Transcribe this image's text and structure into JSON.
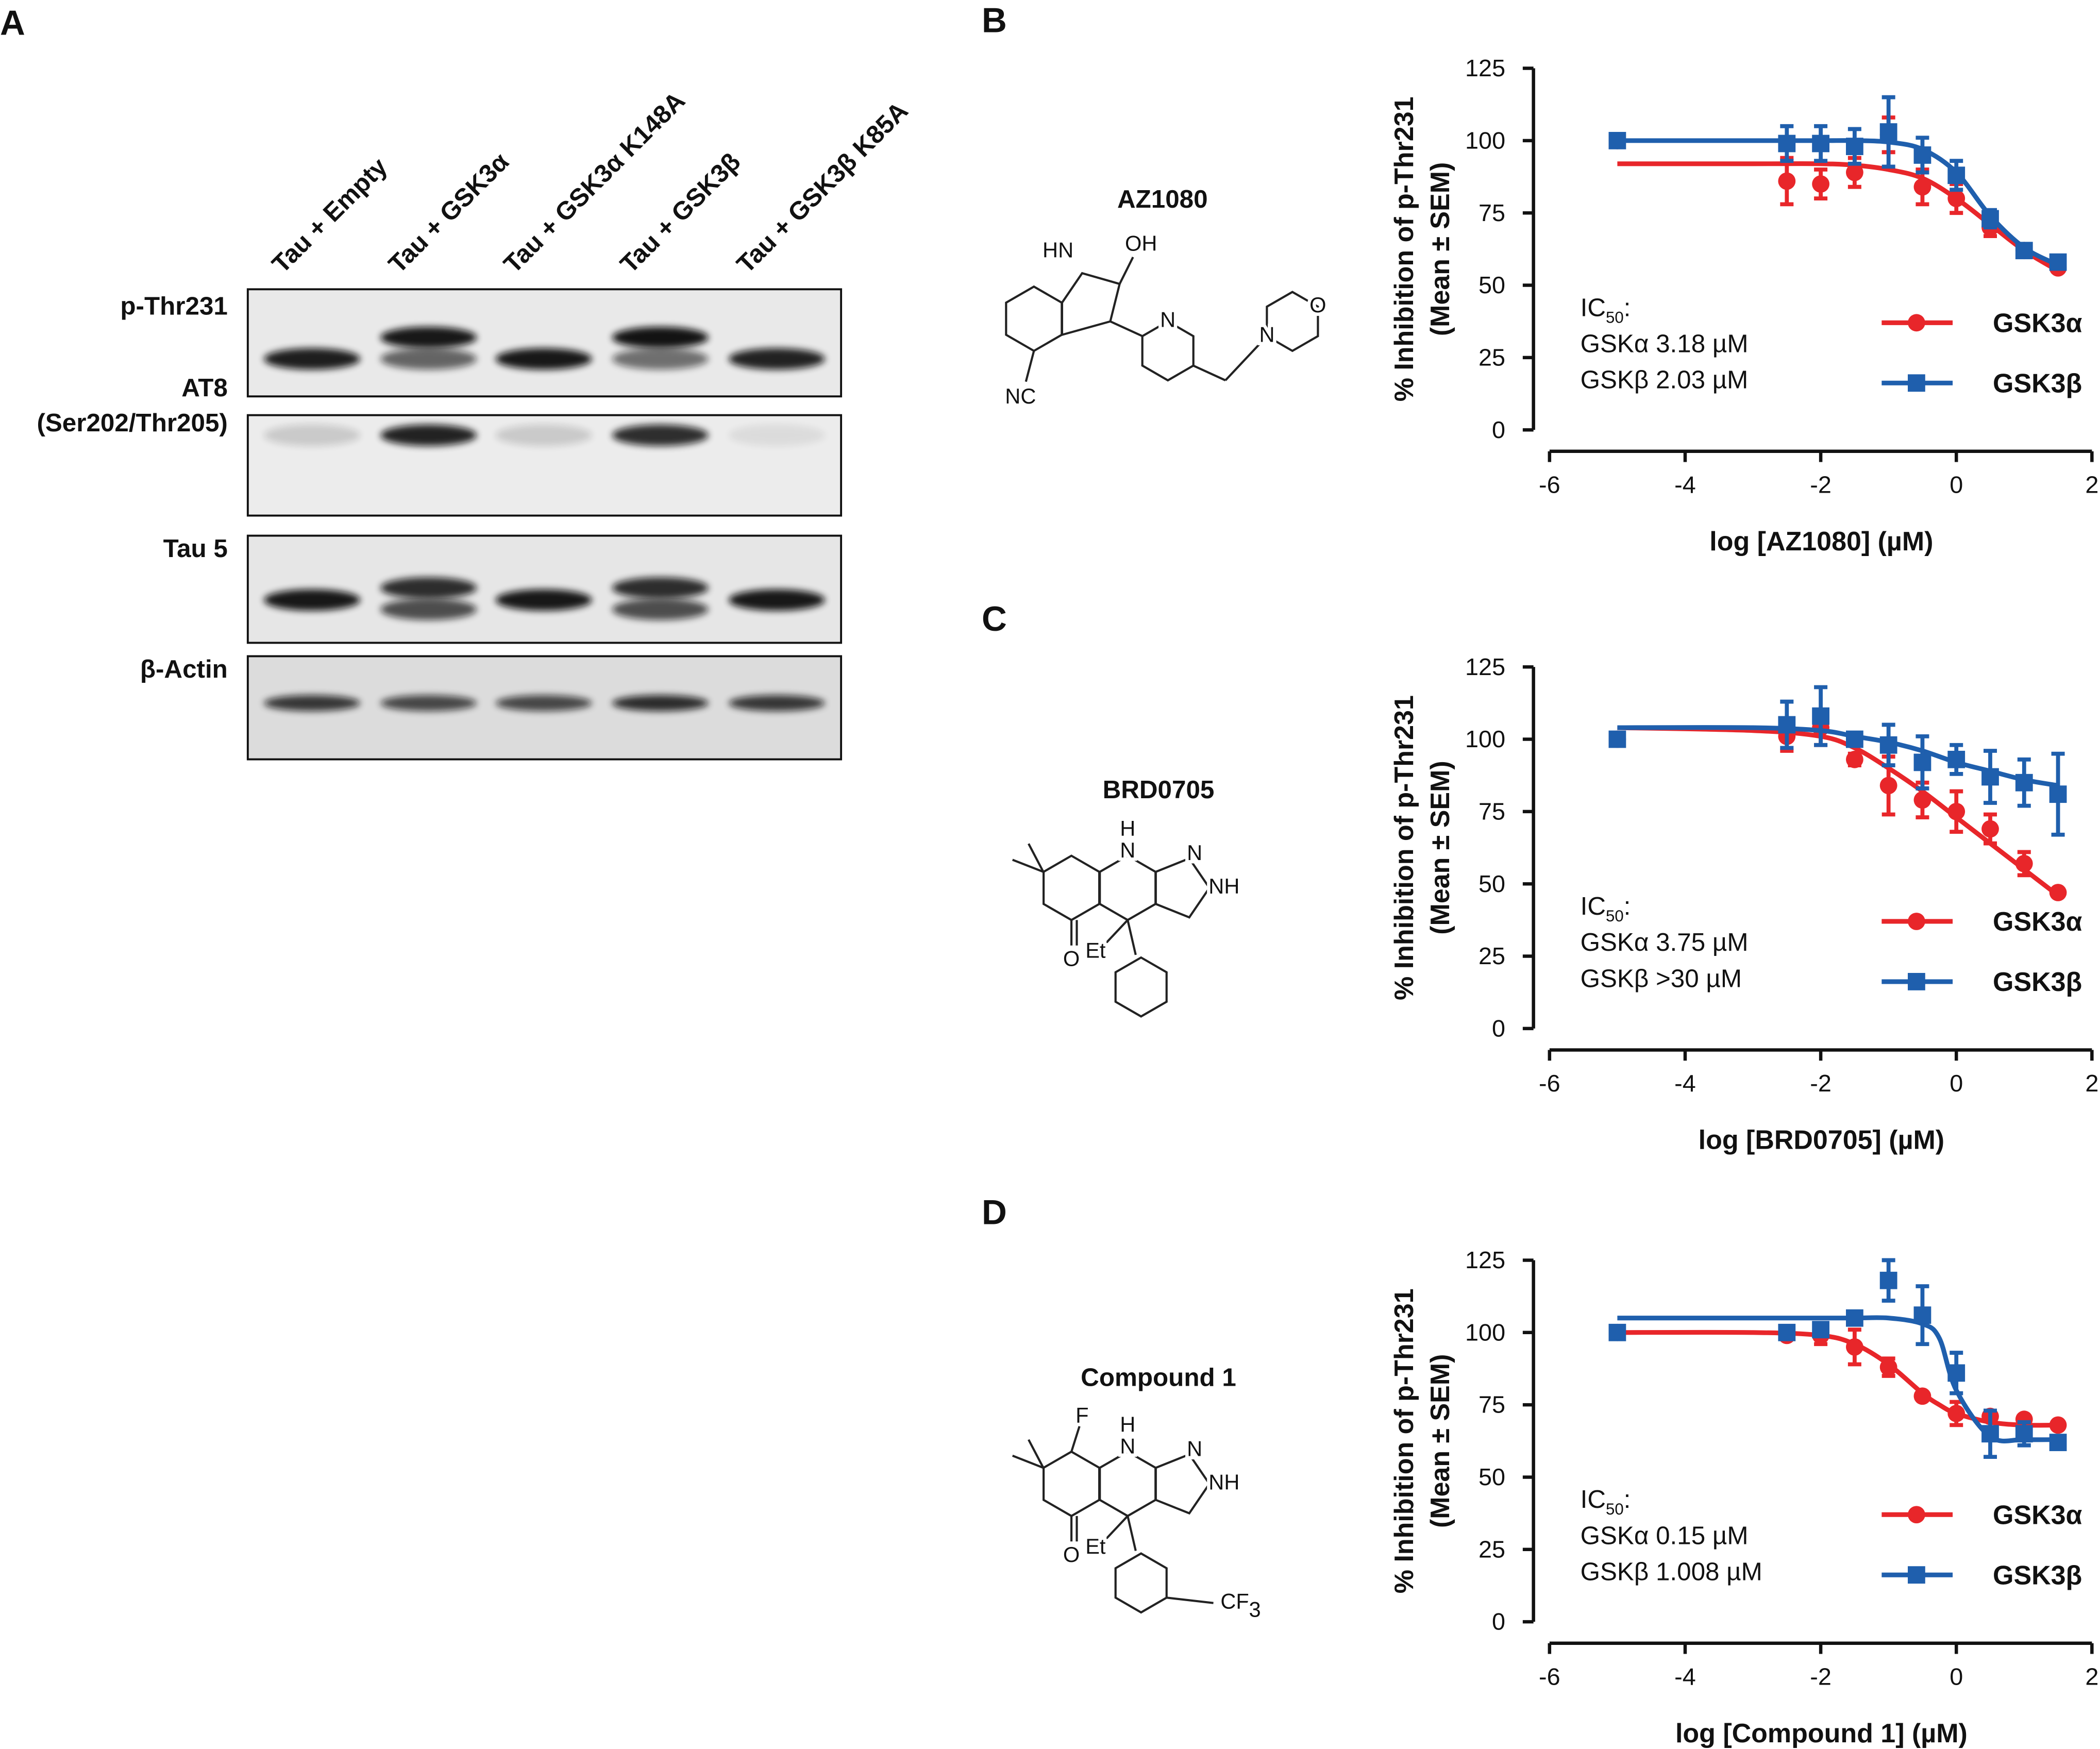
{
  "western_blot": {
    "panel": "A",
    "lanes": [
      "Tau + Empty",
      "Tau + GSK3α",
      "Tau + GSK3α K148A",
      "Tau + GSK3β",
      "Tau + GSK3β K85A"
    ],
    "rows": [
      [
        "p-Thr231"
      ],
      [
        "AT8",
        "(Ser202/Thr205)"
      ],
      [
        "Tau 5"
      ],
      [
        "β-Actin"
      ]
    ]
  },
  "structures": [
    {
      "name": "AZ1080",
      "atoms": [
        "HN",
        "OH",
        "N",
        "N",
        "O",
        "NC"
      ]
    },
    {
      "name": "BRD0705",
      "atoms": [
        "H",
        "N",
        "N",
        "NH",
        "O",
        "Et"
      ]
    },
    {
      "name": "Compound 1",
      "atoms": [
        "F",
        "H",
        "N",
        "N",
        "NH",
        "O",
        "Et",
        "CF",
        "3"
      ]
    }
  ],
  "chart_data": [
    {
      "type": "line",
      "panel": "B",
      "x": [
        -5,
        -2.5,
        -2,
        -1.5,
        -1,
        -0.5,
        0,
        0.5,
        1,
        1.5
      ],
      "xlim": [
        -6,
        2
      ],
      "xticks": [
        -6,
        -4,
        -2,
        0,
        2
      ],
      "ylim": [
        0,
        125
      ],
      "yticks": [
        0,
        25,
        50,
        75,
        100,
        125
      ],
      "xlabel": "log [AZ1080] (µM)",
      "ylabel": [
        "% Inhibition of p-Thr231",
        "(Mean ± SEM)"
      ],
      "ic50": {
        "text": "IC",
        "sub": "50",
        "colon": ":",
        "lines": [
          "GSKα 3.18 µM",
          "GSKβ 2.03 µM"
        ]
      },
      "legend": "lower right",
      "series": [
        {
          "name": "GSK3α",
          "color": "#e8262a",
          "marker": "circle",
          "values": [
            100,
            86,
            85,
            89,
            102,
            84,
            80,
            70,
            62,
            56
          ],
          "errors": [
            0,
            8,
            5,
            5,
            6,
            6,
            5,
            3,
            2,
            1
          ],
          "fit": {
            "x": [
              -5,
              -3,
              -2,
              -1.5,
              -1,
              -0.5,
              0,
              0.5,
              1,
              1.5
            ],
            "values": [
              92,
              92,
              92,
              91.5,
              90,
              87,
              80,
              71,
              62,
              55
            ]
          }
        },
        {
          "name": "GSK3β",
          "color": "#1f5fad",
          "marker": "square",
          "values": [
            100,
            99,
            99,
            98,
            103,
            95,
            88,
            73,
            62,
            58
          ],
          "errors": [
            0,
            6,
            6,
            6,
            12,
            6,
            5,
            3,
            2,
            2
          ],
          "fit": {
            "x": [
              -5,
              -3,
              -2,
              -1.5,
              -1,
              -0.5,
              0,
              0.5,
              1,
              1.5
            ],
            "values": [
              100,
              100,
              100,
              100,
              99.5,
              97,
              89,
              74,
              63,
              57
            ]
          }
        }
      ]
    },
    {
      "type": "line",
      "panel": "C",
      "x": [
        -5,
        -2.5,
        -2,
        -1.5,
        -1,
        -0.5,
        0,
        0.5,
        1,
        1.5
      ],
      "xlim": [
        -6,
        2
      ],
      "xticks": [
        -6,
        -4,
        -2,
        0,
        2
      ],
      "ylim": [
        0,
        125
      ],
      "yticks": [
        0,
        25,
        50,
        75,
        100,
        125
      ],
      "xlabel": "log [BRD0705] (µM)",
      "ylabel": [
        "% Inhibition of p-Thr231",
        "(Mean ± SEM)"
      ],
      "ic50": {
        "text": "IC",
        "sub": "50",
        "colon": ":",
        "lines": [
          "GSKα 3.75 µM",
          "GSKβ >30 µM"
        ]
      },
      "legend": "lower right",
      "series": [
        {
          "name": "GSK3α",
          "color": "#e8262a",
          "marker": "circle",
          "values": [
            100,
            101,
            104,
            93,
            84,
            79,
            75,
            69,
            57,
            47
          ],
          "errors": [
            0,
            5,
            6,
            2,
            10,
            6,
            7,
            5,
            4,
            1
          ],
          "fit": {
            "x": [
              -5,
              -3,
              -2,
              -1.5,
              -1,
              -0.5,
              0,
              0.5,
              1,
              1.5
            ],
            "values": [
              104,
              103,
              101,
              97,
              90,
              82,
              73,
              64,
              55,
              46
            ]
          }
        },
        {
          "name": "GSK3β",
          "color": "#1f5fad",
          "marker": "square",
          "values": [
            100,
            105,
            108,
            100,
            98,
            92,
            93,
            87,
            85,
            81
          ],
          "errors": [
            0,
            8,
            10,
            2,
            7,
            9,
            5,
            9,
            8,
            14
          ],
          "fit": {
            "x": [
              -5,
              -3,
              -2,
              -1.5,
              -1,
              -0.5,
              0,
              0.5,
              1,
              1.5
            ],
            "values": [
              104,
              104,
              103,
              101,
              99,
              96,
              92,
              89,
              86,
              84
            ]
          }
        }
      ]
    },
    {
      "type": "line",
      "panel": "D",
      "x": [
        -5,
        -2.5,
        -2,
        -1.5,
        -1,
        -0.5,
        0,
        0.5,
        1,
        1.5
      ],
      "xlim": [
        -6,
        2
      ],
      "xticks": [
        -6,
        -4,
        -2,
        0,
        2
      ],
      "ylim": [
        0,
        125
      ],
      "yticks": [
        0,
        25,
        50,
        75,
        100,
        125
      ],
      "xlabel": "log [Compound 1] (µM)",
      "ylabel": [
        "% Inhibition of p-Thr231",
        "(Mean ± SEM)"
      ],
      "ic50": {
        "text": "IC",
        "sub": "50",
        "colon": ":",
        "lines": [
          "GSKα 0.15 µM",
          "GSKβ 1.008 µM"
        ]
      },
      "legend": "lower right",
      "series": [
        {
          "name": "GSK3α",
          "color": "#e8262a",
          "marker": "circle",
          "values": [
            100,
            99,
            99,
            95,
            88,
            78,
            72,
            71,
            70,
            68
          ],
          "errors": [
            0,
            1,
            3,
            6,
            3,
            1,
            4,
            1,
            1,
            1
          ],
          "fit": {
            "x": [
              -5,
              -3,
              -2,
              -1.5,
              -1,
              -0.5,
              -0.25,
              0,
              0.5,
              1,
              1.5
            ],
            "values": [
              100,
              100,
              99,
              96,
              89,
              79,
              75,
              72,
              69,
              68,
              68
            ]
          }
        },
        {
          "name": "GSK3β",
          "color": "#1f5fad",
          "marker": "square",
          "values": [
            100,
            100,
            101,
            105,
            118,
            106,
            86,
            65,
            65,
            62
          ],
          "errors": [
            0,
            2,
            2,
            1,
            7,
            10,
            7,
            8,
            4,
            2
          ],
          "fit": {
            "x": [
              -5,
              -3,
              -2,
              -1.5,
              -1,
              -0.5,
              -0.25,
              0,
              0.5,
              1,
              1.5
            ],
            "values": [
              105,
              105,
              105,
              105,
              105,
              103,
              98,
              80,
              64,
              63,
              63
            ]
          }
        }
      ]
    }
  ]
}
